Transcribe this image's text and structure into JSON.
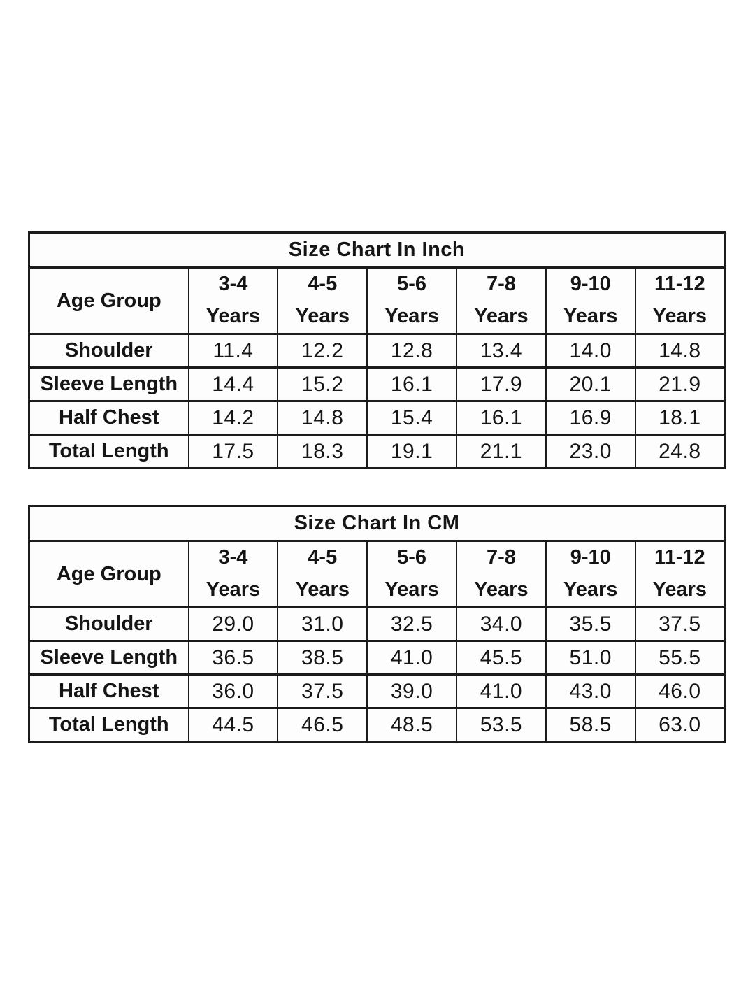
{
  "page": {
    "background": "#ffffff",
    "text_color": "#151515",
    "border_color": "#1b1b1b"
  },
  "chart_data": [
    {
      "type": "table",
      "title": "Size Chart In Inch",
      "unit": "Inch",
      "corner_label": "Age Group",
      "columns": [
        {
          "age": "3-4",
          "suffix": "Years"
        },
        {
          "age": "4-5",
          "suffix": "Years"
        },
        {
          "age": "5-6",
          "suffix": "Years"
        },
        {
          "age": "7-8",
          "suffix": "Years"
        },
        {
          "age": "9-10",
          "suffix": "Years"
        },
        {
          "age": "11-12",
          "suffix": "Years"
        }
      ],
      "rows": [
        {
          "label": "Shoulder",
          "values": [
            "11.4",
            "12.2",
            "12.8",
            "13.4",
            "14.0",
            "14.8"
          ]
        },
        {
          "label": "Sleeve Length",
          "values": [
            "14.4",
            "15.2",
            "16.1",
            "17.9",
            "20.1",
            "21.9"
          ]
        },
        {
          "label": "Half Chest",
          "values": [
            "14.2",
            "14.8",
            "15.4",
            "16.1",
            "16.9",
            "18.1"
          ]
        },
        {
          "label": "Total Length",
          "values": [
            "17.5",
            "18.3",
            "19.1",
            "21.1",
            "23.0",
            "24.8"
          ]
        }
      ]
    },
    {
      "type": "table",
      "title": "Size Chart In CM",
      "unit": "CM",
      "corner_label": "Age Group",
      "columns": [
        {
          "age": "3-4",
          "suffix": "Years"
        },
        {
          "age": "4-5",
          "suffix": "Years"
        },
        {
          "age": "5-6",
          "suffix": "Years"
        },
        {
          "age": "7-8",
          "suffix": "Years"
        },
        {
          "age": "9-10",
          "suffix": "Years"
        },
        {
          "age": "11-12",
          "suffix": "Years"
        }
      ],
      "rows": [
        {
          "label": "Shoulder",
          "values": [
            "29.0",
            "31.0",
            "32.5",
            "34.0",
            "35.5",
            "37.5"
          ]
        },
        {
          "label": "Sleeve Length",
          "values": [
            "36.5",
            "38.5",
            "41.0",
            "45.5",
            "51.0",
            "55.5"
          ]
        },
        {
          "label": "Half Chest",
          "values": [
            "36.0",
            "37.5",
            "39.0",
            "41.0",
            "43.0",
            "46.0"
          ]
        },
        {
          "label": "Total Length",
          "values": [
            "44.5",
            "46.5",
            "48.5",
            "53.5",
            "58.5",
            "63.0"
          ]
        }
      ]
    }
  ]
}
